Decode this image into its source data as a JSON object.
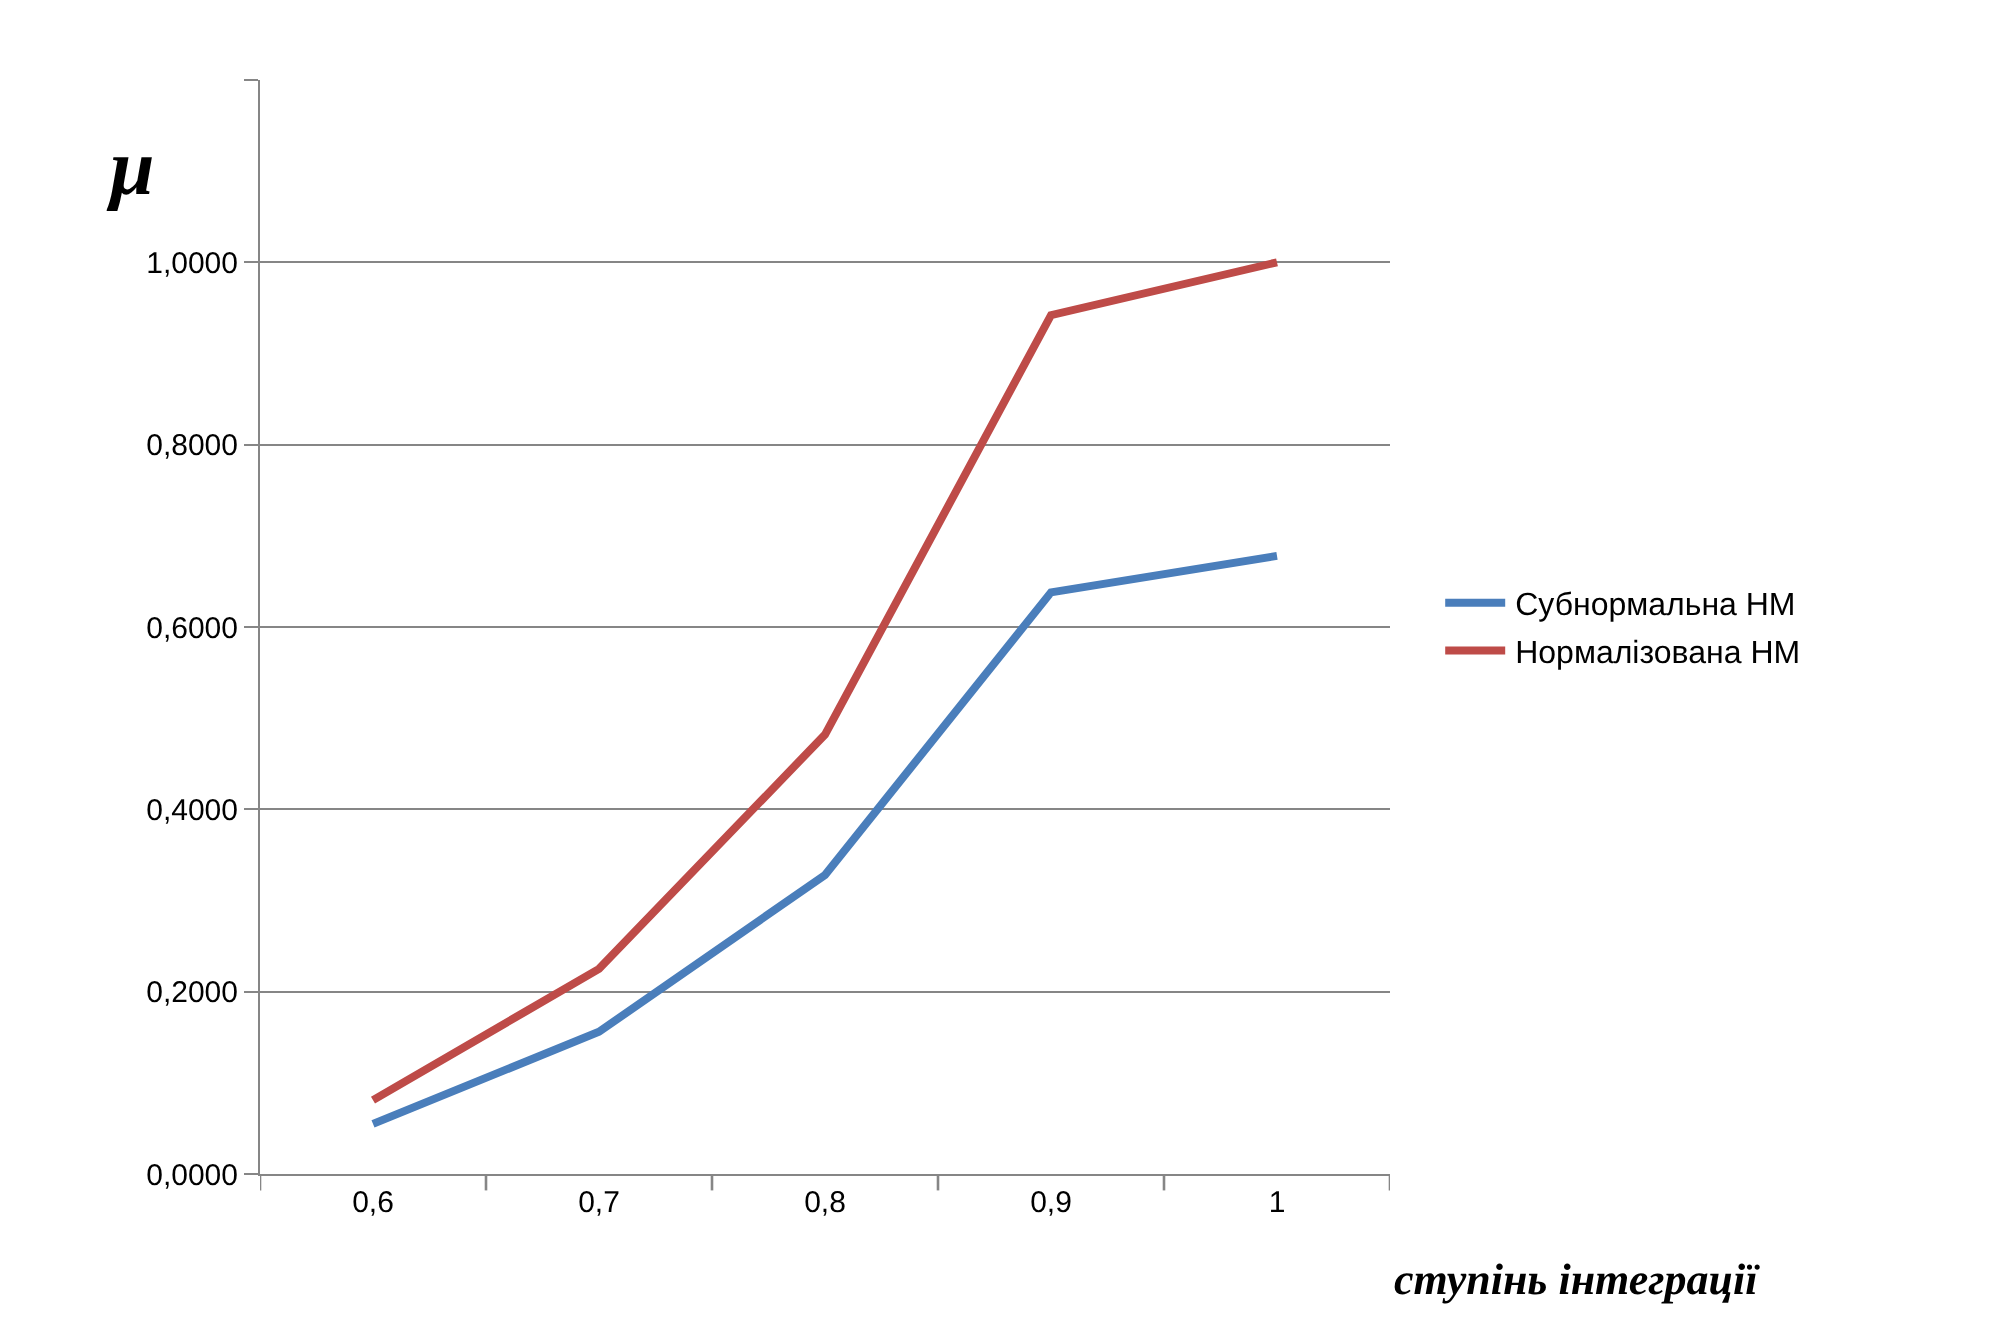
{
  "chart_data": {
    "type": "line",
    "xlabel": "ступінь інтеграції",
    "ylabel": "μ",
    "categories": [
      "0,6",
      "0,7",
      "0,8",
      "0,9",
      "1"
    ],
    "series": [
      {
        "name": "Субнормальна НМ",
        "color": "#4a7ebb",
        "values": [
          0.055,
          0.156,
          0.328,
          0.638,
          0.678
        ]
      },
      {
        "name": "Нормалізована НМ",
        "color": "#be4b48",
        "values": [
          0.081,
          0.225,
          0.482,
          0.942,
          1.0
        ]
      }
    ],
    "ylim": [
      0,
      1.2
    ],
    "yticks": [
      {
        "value": 0,
        "label": "0,0000"
      },
      {
        "value": 0.2,
        "label": "0,2000"
      },
      {
        "value": 0.4,
        "label": "0,4000"
      },
      {
        "value": 0.6,
        "label": "0,6000"
      },
      {
        "value": 0.8,
        "label": "0,8000"
      },
      {
        "value": 1.0,
        "label": "1,0000"
      },
      {
        "value": 1.2,
        "label": null
      }
    ],
    "grid": "y",
    "legend": "right",
    "marker": "none",
    "line_style": "solid"
  }
}
